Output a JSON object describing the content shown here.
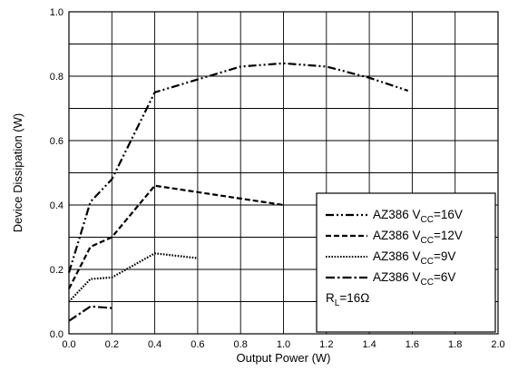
{
  "chart_data": {
    "type": "line",
    "xlabel": "Output Power (W)",
    "ylabel": "Device Dissipation (W)",
    "xlim": [
      0.0,
      2.0
    ],
    "ylim": [
      0.0,
      1.0
    ],
    "grid": true,
    "legend_position": "bottom-right",
    "x_ticks": [
      "0.0",
      "0.2",
      "0.4",
      "0.6",
      "0.8",
      "1.0",
      "1.2",
      "1.4",
      "1.6",
      "1.8",
      "2.0"
    ],
    "y_ticks": [
      "0.0",
      "0.2",
      "0.4",
      "0.6",
      "0.8",
      "1.0"
    ],
    "series": [
      {
        "name": "AZ386 V",
        "sub": "CC",
        "suffix": "=16V",
        "dash": "dash-dot-dot",
        "x": [
          0.0,
          0.1,
          0.2,
          0.4,
          0.8,
          1.0,
          1.2,
          1.4,
          1.58
        ],
        "y": [
          0.19,
          0.41,
          0.48,
          0.75,
          0.83,
          0.84,
          0.83,
          0.795,
          0.755
        ]
      },
      {
        "name": "AZ386 V",
        "sub": "CC",
        "suffix": "=12V",
        "dash": "dashed",
        "x": [
          0.0,
          0.1,
          0.2,
          0.4,
          1.0
        ],
        "y": [
          0.14,
          0.27,
          0.3,
          0.46,
          0.4
        ]
      },
      {
        "name": "AZ386 V",
        "sub": "CC",
        "suffix": "=9V",
        "dash": "dotted",
        "x": [
          0.0,
          0.1,
          0.2,
          0.4,
          0.6
        ],
        "y": [
          0.1,
          0.17,
          0.175,
          0.25,
          0.235
        ]
      },
      {
        "name": "AZ386 V",
        "sub": "CC",
        "suffix": "=6V",
        "dash": "dash-dot",
        "x": [
          0.0,
          0.1,
          0.2
        ],
        "y": [
          0.04,
          0.085,
          0.08
        ]
      }
    ],
    "annotation": {
      "main": "R",
      "sub": "L",
      "suffix": "=16Ω"
    }
  }
}
